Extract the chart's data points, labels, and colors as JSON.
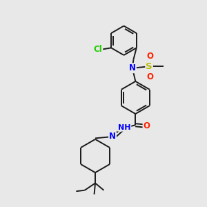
{
  "background_color": "#e8e8e8",
  "bond_color": "#1a1a1a",
  "atom_colors": {
    "N": "#0000ff",
    "O": "#ff2200",
    "S": "#bbbb00",
    "Cl": "#22cc00",
    "H": "#777777",
    "C": "#1a1a1a"
  },
  "font_size": 8.5,
  "figsize": [
    3.0,
    3.0
  ],
  "dpi": 100,
  "xlim": [
    0,
    10
  ],
  "ylim": [
    0,
    10
  ]
}
